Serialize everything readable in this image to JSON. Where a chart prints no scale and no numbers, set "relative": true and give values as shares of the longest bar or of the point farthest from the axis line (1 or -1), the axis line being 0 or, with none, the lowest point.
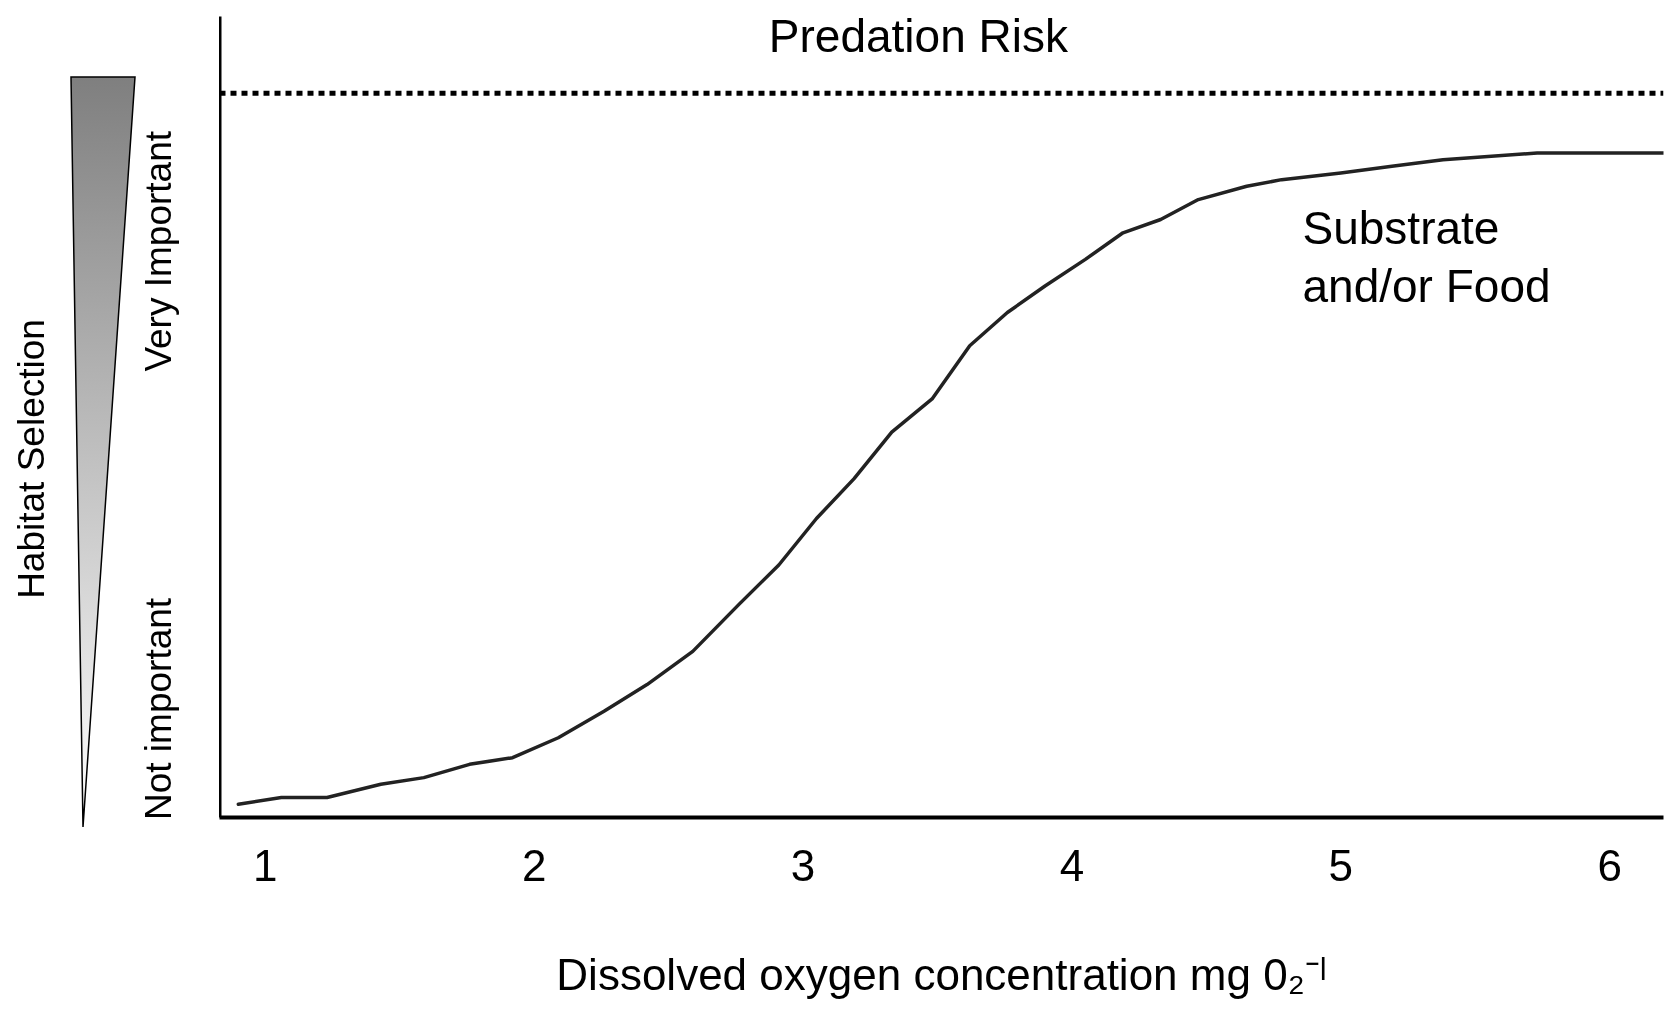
{
  "chart_data": {
    "type": "line",
    "relative": true,
    "xlabel": "Dissolved oxygen concentration mg 0₂⁻ˡ",
    "ylabel": "Habitat Selection",
    "annotations": [
      "Very Important",
      "Not important"
    ],
    "xlim": [
      0.83,
      6.2
    ],
    "xticks": [
      1,
      2,
      3,
      4,
      5,
      6
    ],
    "x": [
      0.9,
      1.06,
      1.23,
      1.43,
      1.59,
      1.76,
      1.92,
      2.09,
      2.26,
      2.42,
      2.59,
      2.76,
      2.91,
      3.05,
      3.19,
      3.33,
      3.48,
      3.62,
      3.76,
      3.9,
      4.05,
      4.19,
      4.33,
      4.47,
      4.65,
      4.78,
      5.0,
      5.19,
      5.38,
      5.73,
      6.2
    ],
    "series": [
      {
        "name": "Substrate and/or Food",
        "color": "#222222",
        "values": [
          0.02,
          0.03,
          0.03,
          0.05,
          0.06,
          0.08,
          0.09,
          0.12,
          0.16,
          0.2,
          0.25,
          0.32,
          0.38,
          0.45,
          0.51,
          0.58,
          0.63,
          0.71,
          0.76,
          0.8,
          0.84,
          0.88,
          0.9,
          0.93,
          0.95,
          0.96,
          0.97,
          0.98,
          0.99,
          1.0,
          1.0
        ]
      }
    ],
    "ref_lines": [
      {
        "axis": "y",
        "value": 1.09,
        "label": "Predation Risk",
        "line_style": "dotted",
        "color": "#000000"
      }
    ]
  }
}
